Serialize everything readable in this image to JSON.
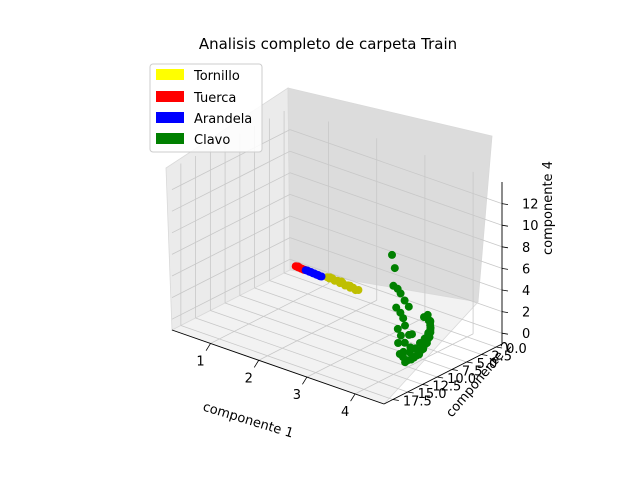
{
  "chart_data": {
    "type": "scatter",
    "projection": "3d",
    "title": "Analisis completo de carpeta Train",
    "xlabel": "componente 1",
    "ylabel": "componente 2",
    "zlabel": "componente 4",
    "xlim": [
      0.2,
      4.6
    ],
    "ylim": [
      -1.0,
      19.0
    ],
    "zlim": [
      -1.0,
      14.0
    ],
    "xticks": [
      "1",
      "2",
      "3",
      "4"
    ],
    "yticks": [
      "0.0",
      "2.5",
      "5.0",
      "7.5",
      "10.0",
      "12.5",
      "15.0",
      "17.5"
    ],
    "zticks": [
      "0",
      "2",
      "4",
      "6",
      "8",
      "10",
      "12"
    ],
    "grid": true,
    "legend_position": "top-left",
    "legend": [
      {
        "label": "Tornillo",
        "color": "#ffff00"
      },
      {
        "label": "Tuerca",
        "color": "#ff0000"
      },
      {
        "label": "Arandela",
        "color": "#0000ff"
      },
      {
        "label": "Clavo",
        "color": "#008000"
      }
    ],
    "series": [
      {
        "name": "Tornillo",
        "color": "#bfbf00",
        "points": [
          [
            1.12,
            0.2,
            0.1
          ],
          [
            1.18,
            0.3,
            0.1
          ],
          [
            1.24,
            0.3,
            0.2
          ],
          [
            1.3,
            0.4,
            0.1
          ],
          [
            1.36,
            0.4,
            0.2
          ],
          [
            1.42,
            0.5,
            0.1
          ],
          [
            1.48,
            0.5,
            0.2
          ],
          [
            1.54,
            0.6,
            0.1
          ],
          [
            1.6,
            0.6,
            0.2
          ],
          [
            1.66,
            0.7,
            0.1
          ],
          [
            1.72,
            0.7,
            0.2
          ],
          [
            1.78,
            0.8,
            0.1
          ],
          [
            1.84,
            0.8,
            0.2
          ],
          [
            1.2,
            0.35,
            0.25
          ],
          [
            1.45,
            0.5,
            0.3
          ],
          [
            1.65,
            0.65,
            0.25
          ]
        ]
      },
      {
        "name": "Tuerca",
        "color": "#ff0000",
        "points": [
          [
            0.44,
            0.0,
            0.0
          ],
          [
            0.47,
            0.05,
            0.05
          ],
          [
            0.5,
            0.05,
            0.0
          ],
          [
            0.53,
            0.1,
            0.05
          ],
          [
            0.56,
            0.1,
            0.0
          ],
          [
            0.59,
            0.15,
            0.05
          ],
          [
            0.62,
            0.15,
            0.0
          ],
          [
            0.65,
            0.2,
            0.05
          ],
          [
            0.5,
            0.1,
            0.1
          ]
        ]
      },
      {
        "name": "Arandela",
        "color": "#0000ff",
        "points": [
          [
            0.66,
            0.1,
            0.0
          ],
          [
            0.7,
            0.15,
            0.05
          ],
          [
            0.74,
            0.15,
            0.0
          ],
          [
            0.78,
            0.2,
            0.05
          ],
          [
            0.82,
            0.2,
            0.0
          ],
          [
            0.86,
            0.25,
            0.05
          ],
          [
            0.9,
            0.25,
            0.0
          ],
          [
            0.94,
            0.3,
            0.05
          ],
          [
            0.98,
            0.3,
            0.0
          ],
          [
            1.02,
            0.35,
            0.05
          ]
        ]
      },
      {
        "name": "Clavo",
        "color": "#008000",
        "points": [
          [
            3.25,
            1.2,
            0.0
          ],
          [
            3.45,
            2.0,
            0.2
          ],
          [
            3.6,
            3.0,
            0.3
          ],
          [
            3.7,
            3.8,
            0.2
          ],
          [
            3.8,
            4.6,
            0.4
          ],
          [
            3.88,
            5.4,
            0.3
          ],
          [
            3.95,
            6.2,
            0.5
          ],
          [
            4.02,
            7.0,
            0.4
          ],
          [
            4.08,
            7.8,
            0.6
          ],
          [
            4.14,
            8.6,
            0.5
          ],
          [
            4.2,
            9.4,
            0.7
          ],
          [
            4.25,
            10.2,
            0.6
          ],
          [
            4.3,
            11.0,
            0.8
          ],
          [
            4.34,
            11.8,
            0.9
          ],
          [
            4.38,
            12.6,
            1.0
          ],
          [
            4.41,
            13.4,
            1.2
          ],
          [
            4.45,
            14.2,
            1.3
          ],
          [
            3.55,
            2.6,
            0.5
          ],
          [
            3.75,
            4.2,
            0.6
          ],
          [
            3.9,
            5.8,
            0.7
          ],
          [
            4.05,
            7.4,
            0.9
          ],
          [
            4.18,
            9.0,
            1.0
          ],
          [
            4.28,
            10.6,
            1.1
          ],
          [
            3.4,
            1.8,
            0.6
          ],
          [
            3.65,
            3.4,
            0.8
          ],
          [
            3.85,
            5.0,
            1.0
          ],
          [
            4.0,
            6.6,
            1.2
          ],
          [
            4.12,
            8.2,
            1.3
          ],
          [
            4.22,
            9.8,
            1.5
          ],
          [
            4.32,
            11.4,
            1.6
          ],
          [
            4.4,
            13.0,
            1.8
          ],
          [
            4.48,
            14.8,
            2.0
          ],
          [
            4.5,
            15.5,
            2.5
          ],
          [
            4.42,
            14.0,
            3.0
          ],
          [
            4.36,
            12.8,
            3.3
          ],
          [
            4.3,
            11.8,
            3.0
          ],
          [
            4.46,
            15.0,
            4.0
          ],
          [
            4.4,
            13.8,
            4.5
          ],
          [
            4.52,
            16.0,
            5.0
          ],
          [
            4.46,
            14.6,
            5.5
          ],
          [
            4.38,
            13.0,
            6.0
          ],
          [
            4.5,
            15.4,
            6.3
          ],
          [
            4.44,
            14.2,
            7.0
          ],
          [
            4.56,
            16.6,
            7.2
          ],
          [
            4.48,
            15.2,
            8.0
          ],
          [
            4.54,
            16.2,
            8.8
          ],
          [
            4.6,
            17.4,
            9.5
          ],
          [
            4.58,
            17.0,
            11.0
          ],
          [
            4.62,
            17.8,
            12.5
          ],
          [
            4.44,
            14.4,
            2.3
          ],
          [
            4.34,
            12.4,
            2.0
          ],
          [
            4.5,
            15.8,
            3.6
          ]
        ]
      }
    ]
  }
}
